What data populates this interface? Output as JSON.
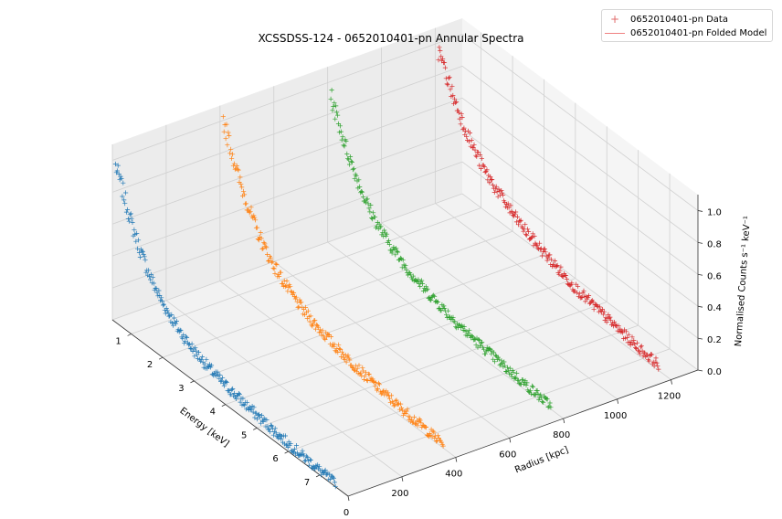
{
  "chart_data": {
    "type": "scatter",
    "projection": "3d",
    "title": "XCSSDSS-124 - 0652010401-pn Annular Spectra",
    "xlabel": "Energy [keV]",
    "ylabel": "Radius [kpc]",
    "zlabel": "Normalised Counts s⁻¹ keV⁻¹",
    "xticks": [
      "1",
      "2",
      "3",
      "4",
      "5",
      "6",
      "7"
    ],
    "yticks": [
      "0",
      "200",
      "400",
      "600",
      "800",
      "1000",
      "1200"
    ],
    "zticks": [
      "0.0",
      "0.2",
      "0.4",
      "0.6",
      "0.8",
      "1.0"
    ],
    "xlim": [
      0.4,
      7.9
    ],
    "ylim": [
      0,
      1300
    ],
    "zlim": [
      0,
      1.1
    ],
    "grid": true,
    "legend_position": "top-right",
    "legend": [
      {
        "label": "0652010401-pn Data",
        "marker": "+",
        "color": "#e06a6a"
      },
      {
        "label": "0652010401-pn Folded Model",
        "marker": "line",
        "color": "#f08080"
      }
    ],
    "series": [
      {
        "radius": 0,
        "color": "#1f77b4",
        "energy": [
          0.5,
          0.75,
          1.0,
          1.3,
          1.6,
          2.0,
          2.5,
          3.0,
          3.5,
          4.0,
          4.5,
          5.0,
          5.5,
          6.0,
          6.5,
          7.0,
          7.5
        ],
        "counts": [
          0.98,
          0.85,
          0.7,
          0.56,
          0.45,
          0.34,
          0.25,
          0.19,
          0.15,
          0.12,
          0.1,
          0.08,
          0.065,
          0.05,
          0.04,
          0.03,
          0.02
        ]
      },
      {
        "radius": 400,
        "color": "#ff7f0e",
        "energy": [
          0.5,
          0.75,
          1.0,
          1.3,
          1.6,
          2.0,
          2.5,
          3.0,
          3.5,
          4.0,
          4.5,
          5.0,
          5.5,
          6.0,
          6.5,
          7.0,
          7.5
        ],
        "counts": [
          1.02,
          0.88,
          0.73,
          0.6,
          0.48,
          0.37,
          0.28,
          0.21,
          0.17,
          0.135,
          0.11,
          0.09,
          0.07,
          0.055,
          0.045,
          0.035,
          0.025
        ]
      },
      {
        "radius": 800,
        "color": "#2ca02c",
        "energy": [
          0.5,
          0.75,
          1.0,
          1.3,
          1.6,
          2.0,
          2.5,
          3.0,
          3.5,
          4.0,
          4.5,
          5.0,
          5.5,
          6.0,
          6.5,
          7.0,
          7.5
        ],
        "counts": [
          0.93,
          0.8,
          0.67,
          0.55,
          0.44,
          0.34,
          0.26,
          0.2,
          0.16,
          0.13,
          0.1,
          0.08,
          0.065,
          0.05,
          0.04,
          0.03,
          0.02
        ]
      },
      {
        "radius": 1200,
        "color": "#d62728",
        "energy": [
          0.5,
          0.75,
          1.0,
          1.3,
          1.6,
          2.0,
          2.5,
          3.0,
          3.5,
          4.0,
          4.5,
          5.0,
          5.5,
          6.0,
          6.5,
          7.0,
          7.5
        ],
        "counts": [
          0.97,
          0.86,
          0.74,
          0.63,
          0.53,
          0.43,
          0.35,
          0.28,
          0.23,
          0.19,
          0.15,
          0.12,
          0.1,
          0.08,
          0.06,
          0.045,
          0.035
        ]
      }
    ]
  }
}
